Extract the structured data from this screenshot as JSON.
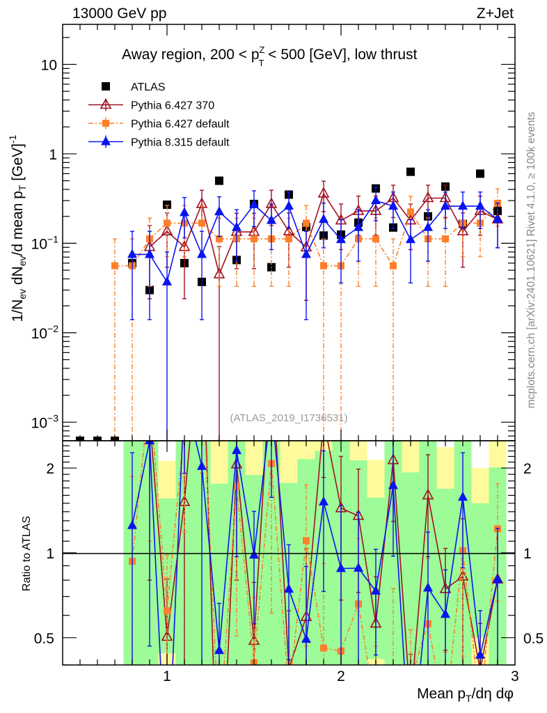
{
  "header": {
    "energy_label": "13000 GeV pp",
    "process_label": "Z+Jet",
    "title_pre": "Away region, 200 < p",
    "title_sup": "Z",
    "title_sub": "T",
    "title_post": " < 500 [GeV], low thrust"
  },
  "side_text": {
    "rivet": "Rivet 4.1.0, ≥ 100k events",
    "mcplots": "mcplots.cern.ch [arXiv:2401.10621]",
    "analysis": "(ATLAS_2019_I1736531)"
  },
  "chart_data": {
    "type": "line",
    "title": "Away region, 200 < pT^Z < 500 [GeV], low thrust",
    "xlabel": {
      "pre": "Mean p",
      "sub": "T",
      "post": "/dη dφ"
    },
    "ylabel": {
      "a": "1/N",
      "a_sub": "ev",
      "b": " dN",
      "b_sub": "ev",
      "c": "/d mean p",
      "c_sub": "T",
      "d": " [GeV]",
      "d_sup": "-1"
    },
    "ratio_ylabel": "Ratio to ATLAS",
    "xlim": [
      0.4,
      3.0
    ],
    "ylim": [
      0.00062,
      28
    ],
    "yscale": "log",
    "ratio_ylim": [
      0.4,
      2.5
    ],
    "ratio_yscale": "log",
    "x_ticks": [
      {
        "v": 1,
        "label": "1"
      },
      {
        "v": 2,
        "label": "2"
      },
      {
        "v": 3,
        "label": "3"
      }
    ],
    "y_ticks": [
      {
        "v": 0.001,
        "base": "10",
        "exp": "−3"
      },
      {
        "v": 0.01,
        "base": "10",
        "exp": "−2"
      },
      {
        "v": 0.1,
        "base": "10",
        "exp": "−1"
      },
      {
        "v": 1,
        "base": "1",
        "exp": ""
      },
      {
        "v": 10,
        "base": "10",
        "exp": ""
      }
    ],
    "ratio_ticks": [
      {
        "v": 2,
        "label": "2"
      },
      {
        "v": 1,
        "label": "1"
      },
      {
        "v": 0.5,
        "label": "0.5"
      }
    ],
    "x": [
      0.5,
      0.6,
      0.7,
      0.8,
      0.9,
      1.0,
      1.1,
      1.2,
      1.3,
      1.4,
      1.5,
      1.6,
      1.7,
      1.8,
      1.9,
      2.0,
      2.1,
      2.2,
      2.3,
      2.4,
      2.5,
      2.6,
      2.7,
      2.8,
      2.9
    ],
    "legend_position": "top-left",
    "series": [
      {
        "name": "ATLAS",
        "key": "atlas",
        "color": "#000000",
        "marker": "square",
        "values": [
          0,
          0,
          0,
          0.06,
          0.03,
          0.27,
          0.06,
          0.037,
          0.5,
          0.065,
          0.275,
          0.054,
          0.35,
          0.152,
          0.122,
          0.125,
          0.17,
          0.41,
          0.15,
          0.63,
          0.2,
          0.43,
          0.165,
          0.6,
          0.23
        ],
        "errors": []
      },
      {
        "name": "Pythia 6.427 370",
        "key": "py6-370",
        "color": "#a01020",
        "marker": "open-triangle",
        "values": [
          null,
          null,
          null,
          null,
          0.091,
          0.136,
          0.091,
          0.275,
          0.045,
          0.134,
          0.134,
          0.275,
          0.136,
          0.09,
          0.36,
          0.18,
          0.23,
          0.23,
          0.32,
          0.18,
          0.32,
          0.32,
          0.136,
          0.23,
          0.185
        ],
        "errors": [
          null,
          null,
          null,
          null,
          0.067,
          0.082,
          0.067,
          0.117,
          0.047,
          0.082,
          0.082,
          0.117,
          0.082,
          0.067,
          0.134,
          0.095,
          0.107,
          0.107,
          0.126,
          0.095,
          0.126,
          0.126,
          0.082,
          0.107,
          0.096
        ]
      },
      {
        "name": "Pythia 6.427 default",
        "key": "py6-default",
        "color": "#ff7f2a",
        "marker": "square-small",
        "values": [
          null,
          null,
          0.056,
          0.056,
          0.112,
          0.168,
          0.168,
          0.168,
          0.112,
          0.112,
          0.112,
          0.112,
          0.112,
          0.168,
          0.056,
          0.056,
          0.112,
          0.112,
          0.056,
          0.224,
          0.112,
          0.112,
          0.168,
          0.168,
          0.28
        ],
        "errors": [
          null,
          null,
          0.056,
          0.056,
          0.079,
          0.097,
          0.097,
          0.097,
          0.079,
          0.079,
          0.079,
          0.079,
          0.079,
          0.097,
          0.056,
          0.056,
          0.079,
          0.079,
          0.056,
          0.112,
          0.079,
          0.079,
          0.097,
          0.097,
          0.125
        ]
      },
      {
        "name": "Pythia 8.315 default",
        "key": "py8-default",
        "color": "#0a14f0",
        "marker": "triangle",
        "values": [
          null,
          null,
          null,
          0.075,
          0.075,
          0.037,
          0.22,
          0.075,
          0.225,
          0.15,
          0.27,
          0.18,
          0.26,
          0.075,
          0.185,
          0.11,
          0.15,
          0.3,
          0.26,
          0.11,
          0.15,
          0.26,
          0.26,
          0.26,
          0.185
        ],
        "errors": [
          null,
          null,
          null,
          0.061,
          0.061,
          0.043,
          0.105,
          0.061,
          0.106,
          0.087,
          0.116,
          0.095,
          0.114,
          0.061,
          0.096,
          0.074,
          0.087,
          0.122,
          0.114,
          0.074,
          0.087,
          0.114,
          0.114,
          0.114,
          0.096
        ]
      }
    ],
    "ratio_band": {
      "inner_color": "#9dfb98",
      "outer_color": "#fffb9d",
      "inner_hi": [
        null,
        null,
        null,
        3,
        3,
        1.56,
        3,
        3,
        1.76,
        3,
        1.89,
        3,
        1.77,
        2.15,
        2.3,
        3,
        2.13,
        1.57,
        3,
        1.93,
        3,
        1.69,
        3,
        1.5,
        2.01
      ],
      "inner_lo": [
        null,
        null,
        null,
        0.3,
        0.3,
        0.44,
        0.3,
        0.3,
        0.3,
        0.3,
        0.3,
        0.3,
        0.3,
        0.3,
        0.3,
        0.3,
        0.3,
        0.42,
        0.3,
        0.3,
        0.3,
        0.3,
        0.3,
        0.5,
        0.3
      ],
      "outer_hi": [
        null,
        null,
        null,
        3,
        3,
        2.12,
        3,
        3,
        3,
        3,
        3,
        3,
        3,
        3,
        3,
        3,
        3,
        2.14,
        3,
        3,
        3,
        2.37,
        3,
        2.0,
        3
      ],
      "outer_lo": [
        null,
        null,
        null,
        0.3,
        0.3,
        0.3,
        0.3,
        0.3,
        0.3,
        0.3,
        0.3,
        0.3,
        0.3,
        0.3,
        0.3,
        0.3,
        0.3,
        0.3,
        0.3,
        0.3,
        0.3,
        0.3,
        0.3,
        0.3,
        0.3
      ]
    }
  }
}
